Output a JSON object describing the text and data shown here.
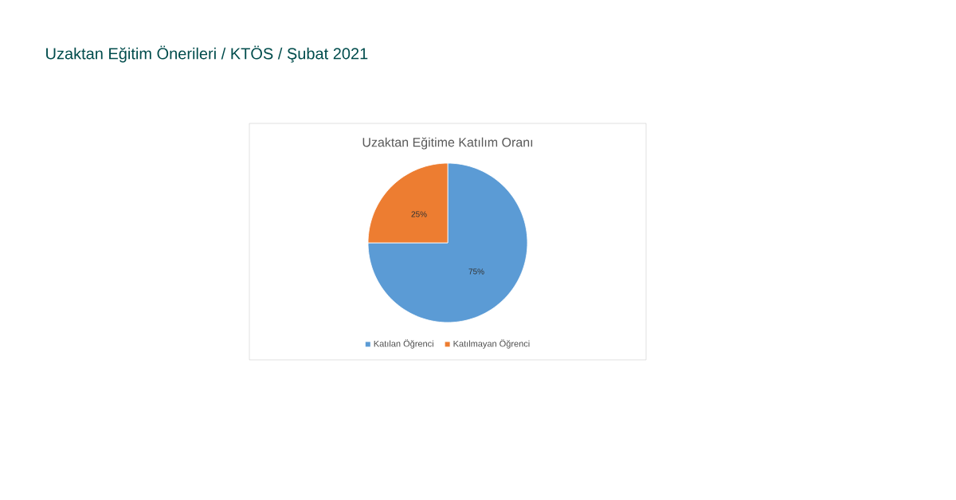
{
  "chart_data": {
    "type": "pie",
    "title": "Uzaktan Eğitime Katılım Oranı",
    "annotations": [
      "Uzaktan Eğitim Önerileri / KTÖS  /  Şubat 2021"
    ],
    "categories": [
      "Katılan Öğrenci",
      "Katılmayan Öğrenci"
    ],
    "values": [
      75,
      25
    ],
    "value_labels": [
      "75%",
      "25%"
    ],
    "colors": [
      "#5b9bd5",
      "#ed7d31"
    ],
    "legend": "bottom"
  }
}
